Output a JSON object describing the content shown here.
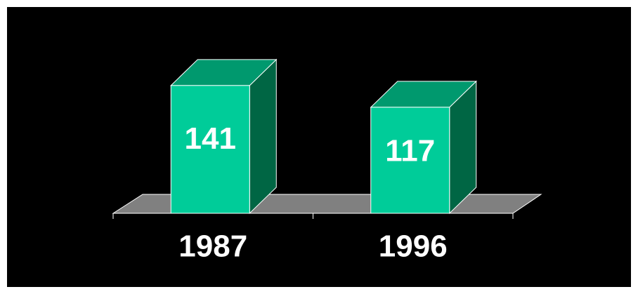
{
  "chart_data": {
    "type": "bar",
    "style": "3d",
    "categories": [
      "1987",
      "1996"
    ],
    "values": [
      141,
      117
    ],
    "data_labels": [
      "141",
      "117"
    ],
    "title": "",
    "xlabel": "",
    "ylabel": "",
    "ylim": [
      0,
      185
    ],
    "grid": false,
    "legend": "none",
    "colors": {
      "background": "#000000",
      "bar_front": "#00cc99",
      "bar_side": "#006644",
      "bar_top": "#00996e",
      "floor": "#808080",
      "edges": "#ffffff"
    }
  }
}
